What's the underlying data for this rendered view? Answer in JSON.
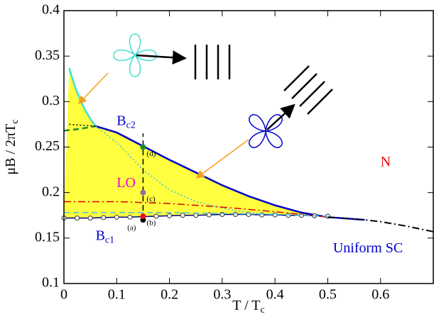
{
  "chart_data": {
    "type": "line",
    "xlabel": {
      "text": "T / T",
      "sub": "c"
    },
    "ylabel": {
      "text": "μB / 2πT",
      "sub": "c"
    },
    "xlim": [
      0,
      0.7
    ],
    "ylim": [
      0.1,
      0.4
    ],
    "xticks": [
      0,
      0.1,
      0.2,
      0.3,
      0.4,
      0.5,
      0.6
    ],
    "yticks": [
      0.1,
      0.15,
      0.2,
      0.25,
      0.3,
      0.35,
      0.4
    ],
    "fill_color": "#ffff40",
    "series": [
      {
        "color": "#40e0d0",
        "style": "solid",
        "width": 2.5,
        "x": [
          0.01,
          0.02,
          0.03,
          0.04,
          0.05,
          0.06
        ],
        "values": [
          0.337,
          0.318,
          0.303,
          0.291,
          0.281,
          0.273
        ]
      },
      {
        "color": "#0000cc",
        "style": "solid",
        "width": 2.5,
        "x": [
          0.06,
          0.1,
          0.15,
          0.2,
          0.25,
          0.3,
          0.35,
          0.4,
          0.45,
          0.5,
          0.57
        ],
        "values": [
          0.273,
          0.266,
          0.251,
          0.236,
          0.222,
          0.208,
          0.196,
          0.186,
          0.178,
          0.173,
          0.17
        ]
      },
      {
        "color": "#000080",
        "style": "solid",
        "width": 1.5,
        "marker": "circle",
        "x": [
          0,
          0.025,
          0.05,
          0.075,
          0.1,
          0.125,
          0.15,
          0.175,
          0.2,
          0.225,
          0.25,
          0.275,
          0.3,
          0.325,
          0.35,
          0.375,
          0.4,
          0.425,
          0.45,
          0.475,
          0.5
        ],
        "values": [
          0.172,
          0.172,
          0.172,
          0.1725,
          0.173,
          0.173,
          0.1735,
          0.174,
          0.1745,
          0.175,
          0.175,
          0.1755,
          0.176,
          0.176,
          0.176,
          0.1755,
          0.1755,
          0.175,
          0.175,
          0.1745,
          0.174
        ]
      },
      {
        "color": "#000000",
        "style": "dashdot",
        "width": 2,
        "x": [
          0.5,
          0.57,
          0.6,
          0.65,
          0.7
        ],
        "values": [
          0.173,
          0.17,
          0.168,
          0.163,
          0.157
        ]
      },
      {
        "color": "#228b22",
        "style": "dashed",
        "width": 2.5,
        "x": [
          0,
          0.03,
          0.06
        ],
        "values": [
          0.268,
          0.27,
          0.273
        ]
      },
      {
        "color": "#40c0e0",
        "style": "dotted",
        "width": 1.5,
        "x": [
          0.06,
          0.1,
          0.15,
          0.2,
          0.25,
          0.3,
          0.35,
          0.4
        ],
        "values": [
          0.273,
          0.255,
          0.225,
          0.203,
          0.19,
          0.183,
          0.178,
          0.176
        ]
      },
      {
        "color": "#dd0000",
        "style": "dashdot",
        "width": 1.5,
        "x": [
          0,
          0.1,
          0.2,
          0.3,
          0.4,
          0.5
        ],
        "values": [
          0.19,
          0.19,
          0.188,
          0.184,
          0.179,
          0.173
        ]
      },
      {
        "color": "#40c0e0",
        "style": "dashed",
        "width": 1.5,
        "x": [
          0,
          0.2,
          0.4,
          0.5
        ],
        "values": [
          0.178,
          0.178,
          0.176,
          0.174
        ]
      },
      {
        "color": "#000000",
        "style": "dotted",
        "width": 1.5,
        "x": [
          0.01,
          0.06
        ],
        "values": [
          0.275,
          0.273
        ]
      },
      {
        "color": "#000000",
        "style": "dashed",
        "width": 1.5,
        "x": [
          0.15,
          0.15
        ],
        "values": [
          0.17,
          0.265
        ]
      }
    ],
    "points": {
      "x": [
        0.15,
        0.15,
        0.15,
        0.15
      ],
      "values": [
        0.17,
        0.174,
        0.2,
        0.25
      ],
      "colors": [
        "#000000",
        "#ee1111",
        "#9070a0",
        "#228b22"
      ],
      "labels": [
        "(a)",
        "(b)",
        "(c)",
        "(d)"
      ]
    },
    "annotations": [
      {
        "text": "B",
        "sub": "c2",
        "x": 0.1,
        "y": 0.278,
        "color": "#0000cc"
      },
      {
        "text": "B",
        "sub": "c1",
        "x": 0.06,
        "y": 0.152,
        "color": "#0000cc"
      },
      {
        "text": "LO",
        "x": 0.1,
        "y": 0.21,
        "color": "#ee00cc"
      },
      {
        "text": "N",
        "x": 0.6,
        "y": 0.233,
        "color": "#ee0000"
      },
      {
        "text": "Uniform SC",
        "x": 0.51,
        "y": 0.138,
        "color": "#0000cc"
      }
    ]
  }
}
